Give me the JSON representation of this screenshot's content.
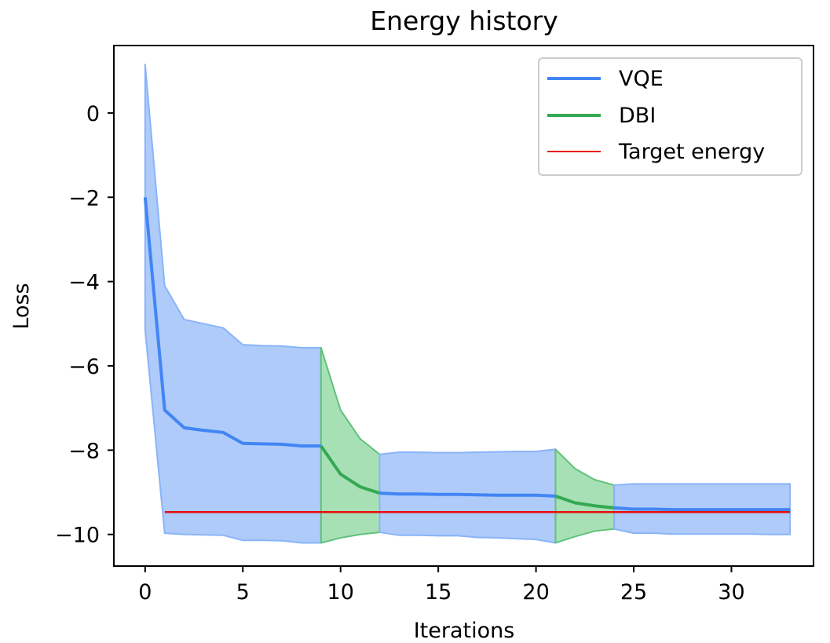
{
  "chart_data": {
    "type": "line",
    "title": "Energy history",
    "xlabel": "Iterations",
    "ylabel": "Loss",
    "xlim": [
      -1.6,
      34.2
    ],
    "ylim": [
      -10.75,
      1.6
    ],
    "xticks": [
      0,
      5,
      10,
      15,
      20,
      25,
      30
    ],
    "yticks": [
      0,
      -2,
      -4,
      -6,
      -8,
      -10
    ],
    "xtick_labels": [
      "0",
      "5",
      "10",
      "15",
      "20",
      "25",
      "30"
    ],
    "ytick_labels": [
      "0",
      "−2",
      "−4",
      "−6",
      "−8",
      "−10"
    ],
    "grid": false,
    "legend_position": "upper right",
    "bands": [
      {
        "series": "VQE",
        "x": [
          0,
          1,
          2,
          3,
          4,
          5,
          6,
          7,
          8,
          9
        ],
        "upper": [
          1.15,
          -4.1,
          -4.9,
          -5.0,
          -5.1,
          -5.5,
          -5.52,
          -5.53,
          -5.57,
          -5.57
        ],
        "lower": [
          -5.15,
          -9.97,
          -10.0,
          -10.01,
          -10.02,
          -10.14,
          -10.14,
          -10.15,
          -10.2,
          -10.2
        ]
      },
      {
        "series": "DBI",
        "x": [
          9,
          10,
          11,
          12
        ],
        "upper": [
          -5.57,
          -7.05,
          -7.73,
          -8.1
        ],
        "lower": [
          -10.2,
          -10.08,
          -10.0,
          -9.95
        ]
      },
      {
        "series": "VQE",
        "x": [
          12,
          13,
          14,
          15,
          16,
          17,
          18,
          19,
          20,
          21
        ],
        "upper": [
          -8.1,
          -8.05,
          -8.05,
          -8.06,
          -8.06,
          -8.05,
          -8.04,
          -8.03,
          -8.03,
          -7.98
        ],
        "lower": [
          -9.95,
          -10.02,
          -10.02,
          -10.03,
          -10.03,
          -10.07,
          -10.08,
          -10.1,
          -10.12,
          -10.2
        ]
      },
      {
        "series": "DBI",
        "x": [
          21,
          22,
          23,
          24
        ],
        "upper": [
          -7.98,
          -8.44,
          -8.7,
          -8.83
        ],
        "lower": [
          -10.2,
          -10.05,
          -9.92,
          -9.87
        ]
      },
      {
        "series": "VQE",
        "x": [
          24,
          25,
          26,
          27,
          28,
          29,
          30,
          31,
          32,
          33
        ],
        "upper": [
          -8.83,
          -8.8,
          -8.8,
          -8.8,
          -8.8,
          -8.8,
          -8.8,
          -8.8,
          -8.8,
          -8.8
        ],
        "lower": [
          -9.87,
          -9.97,
          -9.97,
          -9.99,
          -9.99,
          -9.99,
          -9.99,
          -9.99,
          -10.0,
          -10.0
        ]
      }
    ],
    "series": [
      {
        "name": "VQE",
        "color": "#4285f4",
        "segments": [
          {
            "x": [
              0,
              1,
              2,
              3,
              4,
              5,
              6,
              7,
              8,
              9
            ],
            "y": [
              -2.0,
              -7.05,
              -7.47,
              -7.53,
              -7.58,
              -7.84,
              -7.85,
              -7.86,
              -7.9,
              -7.9
            ]
          },
          {
            "x": [
              12,
              13,
              14,
              15,
              16,
              17,
              18,
              19,
              20,
              21
            ],
            "y": [
              -9.02,
              -9.04,
              -9.04,
              -9.05,
              -9.05,
              -9.06,
              -9.07,
              -9.07,
              -9.07,
              -9.09
            ]
          },
          {
            "x": [
              24,
              25,
              26,
              27,
              28,
              29,
              30,
              31,
              32,
              33
            ],
            "y": [
              -9.37,
              -9.4,
              -9.4,
              -9.41,
              -9.41,
              -9.41,
              -9.41,
              -9.41,
              -9.41,
              -9.41
            ]
          }
        ]
      },
      {
        "name": "DBI",
        "color": "#34a853",
        "segments": [
          {
            "x": [
              9,
              10,
              11,
              12
            ],
            "y": [
              -7.9,
              -8.57,
              -8.87,
              -9.02
            ]
          },
          {
            "x": [
              21,
              22,
              23,
              24
            ],
            "y": [
              -9.09,
              -9.25,
              -9.32,
              -9.37
            ]
          }
        ]
      },
      {
        "name": "Target energy",
        "color": "#ea0d0d",
        "segments": [
          {
            "x": [
              1,
              33
            ],
            "y": [
              -9.47,
              -9.47
            ]
          }
        ]
      }
    ],
    "colors": {
      "vqe_fill": "#aecbfa",
      "dbi_fill": "#a8e0b5",
      "vqe_edge": "#8ab4f8",
      "dbi_edge": "#5fc27a"
    }
  }
}
